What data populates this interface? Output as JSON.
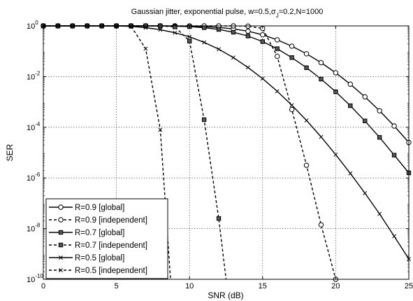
{
  "chart_data": {
    "type": "line",
    "title": "Gaussian jitter, exponential pulse, w=0.5,σJ=0.2,N=1000",
    "title_parts": {
      "prefix": "Gaussian jitter, exponential pulse, w=0.5,",
      "sigma": "σ",
      "sub": "J",
      "suffix": "=0.2,N=1000"
    },
    "xlabel": "SNR (dB)",
    "ylabel": "SER",
    "xlim": [
      0,
      25
    ],
    "ylim_log10": [
      -10,
      0
    ],
    "y_scale": "log",
    "grid": true,
    "legend_position": "bottom-left",
    "x_ticks": [
      0,
      5,
      10,
      15,
      20,
      25
    ],
    "y_tick_exponents": [
      -10,
      -8,
      -6,
      -4,
      -2,
      0
    ],
    "y_tick_base": "10",
    "series": [
      {
        "name": "R=0.9 [global]",
        "style": "solid",
        "marker": "circle",
        "x": [
          0,
          1,
          2,
          3,
          4,
          5,
          6,
          7,
          8,
          9,
          10,
          11,
          12,
          13,
          14,
          15,
          16,
          17,
          18,
          19,
          20,
          21,
          22,
          23,
          24,
          25
        ],
        "log10_y": [
          0,
          0,
          0,
          0,
          0,
          0,
          0,
          0,
          0,
          0,
          -0.01,
          -0.03,
          -0.06,
          -0.12,
          -0.21,
          -0.35,
          -0.55,
          -0.8,
          -1.1,
          -1.45,
          -1.85,
          -2.3,
          -2.8,
          -3.35,
          -3.95,
          -4.6
        ]
      },
      {
        "name": "R=0.9 [independent]",
        "style": "dashed",
        "marker": "circle",
        "x": [
          0,
          1,
          2,
          3,
          4,
          5,
          6,
          7,
          8,
          9,
          10,
          11,
          12,
          13,
          14,
          15,
          16,
          17,
          18,
          19,
          20
        ],
        "log10_y": [
          0,
          0,
          0,
          0,
          0,
          0,
          0,
          0,
          0,
          0,
          0,
          0,
          0,
          0,
          -0.01,
          -0.1,
          -1.2,
          -3.3,
          -5.5,
          -7.85,
          -10
        ]
      },
      {
        "name": "R=0.7 [global]",
        "style": "solid",
        "marker": "square",
        "x": [
          0,
          1,
          2,
          3,
          4,
          5,
          6,
          7,
          8,
          9,
          10,
          11,
          12,
          13,
          14,
          15,
          16,
          17,
          18,
          19,
          20,
          21,
          22,
          23,
          24,
          25
        ],
        "log10_y": [
          0,
          0,
          0,
          0,
          0,
          0,
          0,
          0,
          0,
          -0.01,
          -0.03,
          -0.07,
          -0.14,
          -0.25,
          -0.4,
          -0.62,
          -0.9,
          -1.25,
          -1.65,
          -2.1,
          -2.6,
          -3.15,
          -3.75,
          -4.4,
          -5.1,
          -5.8
        ]
      },
      {
        "name": "R=0.7 [independent]",
        "style": "dashed",
        "marker": "square",
        "x": [
          0,
          1,
          2,
          3,
          4,
          5,
          6,
          7,
          8,
          9,
          10,
          11,
          12,
          12.5
        ],
        "log10_y": [
          0,
          0,
          0,
          0,
          0,
          0,
          0,
          0,
          0,
          -0.04,
          -0.6,
          -3.7,
          -7.6,
          -10
        ]
      },
      {
        "name": "R=0.5 [global]",
        "style": "solid",
        "marker": "x",
        "x": [
          0,
          1,
          2,
          3,
          4,
          5,
          6,
          7,
          8,
          9,
          10,
          11,
          12,
          13,
          14,
          15,
          16,
          17,
          18,
          19,
          20,
          21,
          22,
          23,
          24,
          25
        ],
        "log10_y": [
          0,
          0,
          0,
          0,
          0,
          0,
          -0.02,
          -0.07,
          -0.15,
          -0.27,
          -0.43,
          -0.65,
          -0.92,
          -1.25,
          -1.64,
          -2.08,
          -2.58,
          -3.13,
          -3.73,
          -4.38,
          -5.08,
          -5.82,
          -6.6,
          -7.42,
          -8.3,
          -9.2
        ]
      },
      {
        "name": "R=0.5 [independent]",
        "style": "dashed",
        "marker": "x",
        "x": [
          0,
          1,
          2,
          3,
          4,
          5,
          6,
          7,
          8,
          8.7
        ],
        "log10_y": [
          0,
          0,
          0,
          0,
          0,
          0,
          -0.01,
          -0.9,
          -4.1,
          -10
        ]
      }
    ]
  }
}
